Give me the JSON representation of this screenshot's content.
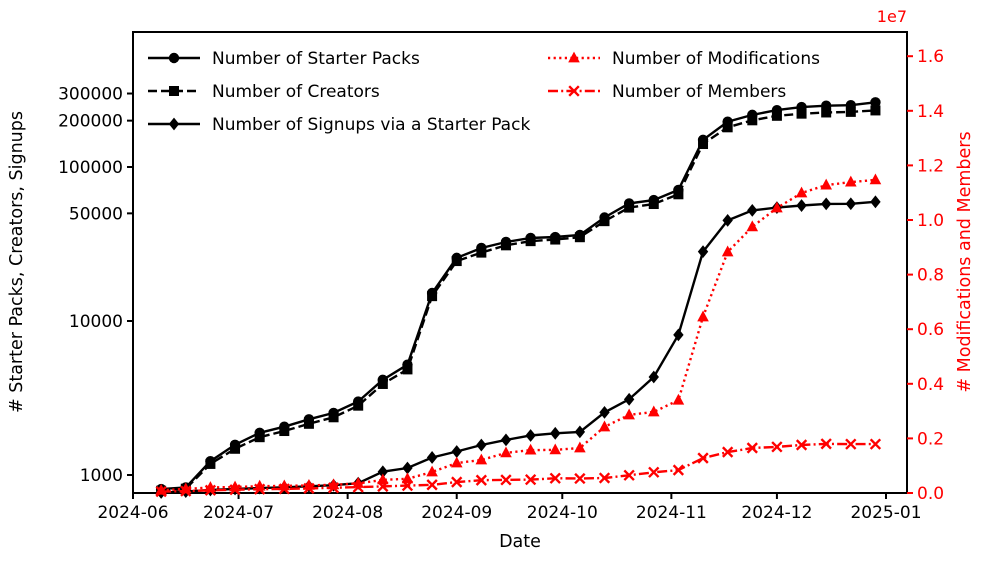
{
  "figure": {
    "background": "#ffffff",
    "xlabel": "Date",
    "ylabel_left": "# Starter Packs, Creators, Signups",
    "ylabel_right": "# Modifications and Members",
    "right_axis_offset_text": "1e7",
    "colors": {
      "black": "#000000",
      "red": "#ff0000"
    }
  },
  "chart_data": {
    "type": "line",
    "x_axis": {
      "label": "Date",
      "ticks": [
        {
          "label": "2024-06",
          "date": "2024-06-01"
        },
        {
          "label": "2024-07",
          "date": "2024-07-01"
        },
        {
          "label": "2024-08",
          "date": "2024-08-01"
        },
        {
          "label": "2024-09",
          "date": "2024-09-01"
        },
        {
          "label": "2024-10",
          "date": "2024-10-01"
        },
        {
          "label": "2024-11",
          "date": "2024-11-01"
        },
        {
          "label": "2024-12",
          "date": "2024-12-01"
        },
        {
          "label": "2025-01",
          "date": "2025-01-01"
        }
      ]
    },
    "left_axis": {
      "label": "# Starter Packs, Creators, Signups",
      "scale": "log",
      "color": "#000000",
      "ticks": [
        {
          "label": "1000",
          "value": 1000
        },
        {
          "label": "10000",
          "value": 10000
        },
        {
          "label": "50000",
          "value": 50000
        },
        {
          "label": "100000",
          "value": 100000
        },
        {
          "label": "200000",
          "value": 200000
        },
        {
          "label": "300000",
          "value": 300000
        }
      ]
    },
    "right_axis": {
      "label": "# Modifications and Members",
      "scale": "linear",
      "color": "#ff0000",
      "offset_text": "1e7",
      "ticks": [
        {
          "label": "0.0",
          "value": 0
        },
        {
          "label": "0.2",
          "value": 2000000
        },
        {
          "label": "0.4",
          "value": 4000000
        },
        {
          "label": "0.6",
          "value": 6000000
        },
        {
          "label": "0.8",
          "value": 8000000
        },
        {
          "label": "1.0",
          "value": 10000000
        },
        {
          "label": "1.2",
          "value": 12000000
        },
        {
          "label": "1.4",
          "value": 14000000
        },
        {
          "label": "1.6",
          "value": 16000000
        }
      ]
    },
    "x_dates": [
      "2024-06-09",
      "2024-06-16",
      "2024-06-23",
      "2024-06-30",
      "2024-07-07",
      "2024-07-14",
      "2024-07-21",
      "2024-07-28",
      "2024-08-04",
      "2024-08-11",
      "2024-08-18",
      "2024-08-25",
      "2024-09-01",
      "2024-09-08",
      "2024-09-15",
      "2024-09-22",
      "2024-09-29",
      "2024-10-06",
      "2024-10-13",
      "2024-10-20",
      "2024-10-27",
      "2024-11-03",
      "2024-11-10",
      "2024-11-17",
      "2024-11-24",
      "2024-12-01",
      "2024-12-08",
      "2024-12-15",
      "2024-12-22",
      "2024-12-29"
    ],
    "series": [
      {
        "name": "Number of Starter Packs",
        "axis": "left",
        "color": "#000000",
        "marker": "circle",
        "linestyle": "solid",
        "values": [
          810,
          830,
          1230,
          1570,
          1880,
          2060,
          2300,
          2530,
          3000,
          4150,
          5200,
          15200,
          25700,
          29800,
          32600,
          34600,
          35100,
          36200,
          47000,
          58000,
          61000,
          71000,
          150000,
          197000,
          218000,
          234000,
          245000,
          250000,
          252000,
          263000
        ]
      },
      {
        "name": "Number of Creators",
        "axis": "left",
        "color": "#000000",
        "marker": "square",
        "linestyle": "dashed",
        "values": [
          790,
          815,
          1180,
          1480,
          1760,
          1930,
          2150,
          2370,
          2820,
          3900,
          4850,
          14500,
          24500,
          27800,
          31000,
          33000,
          33800,
          35000,
          44500,
          54500,
          57500,
          66500,
          141000,
          181000,
          201000,
          215000,
          222000,
          226000,
          228000,
          233000
        ]
      },
      {
        "name": "Number of Signups via a Starter Pack",
        "axis": "left",
        "color": "#000000",
        "marker": "diamond",
        "linestyle": "solid",
        "values": [
          770,
          780,
          800,
          812,
          822,
          832,
          845,
          858,
          885,
          1050,
          1110,
          1300,
          1420,
          1565,
          1690,
          1805,
          1865,
          1905,
          2550,
          3100,
          4330,
          8130,
          28200,
          45000,
          52300,
          54500,
          56200,
          57600,
          57700,
          59400
        ]
      },
      {
        "name": "Number of Modifications",
        "axis": "right",
        "color": "#ff0000",
        "marker": "triangle",
        "linestyle": "dotted",
        "values": [
          100000,
          150000,
          200000,
          220000,
          250000,
          260000,
          280000,
          300000,
          350000,
          480000,
          520000,
          770000,
          1100000,
          1210000,
          1470000,
          1570000,
          1580000,
          1650000,
          2420000,
          2860000,
          2970000,
          3400000,
          6450000,
          8830000,
          9750000,
          10440000,
          10990000,
          11280000,
          11390000,
          11470000
        ]
      },
      {
        "name": "Number of Members",
        "axis": "right",
        "color": "#ff0000",
        "marker": "x",
        "linestyle": "dashdot",
        "values": [
          50000,
          70000,
          100000,
          120000,
          140000,
          150000,
          170000,
          190000,
          215000,
          240000,
          270000,
          300000,
          400000,
          470000,
          480000,
          490000,
          540000,
          530000,
          550000,
          650000,
          760000,
          840000,
          1280000,
          1500000,
          1650000,
          1690000,
          1760000,
          1800000,
          1790000,
          1790000
        ]
      }
    ],
    "legend": {
      "position": "upper left",
      "columns": 2,
      "entries": [
        "Number of Starter Packs",
        "Number of Creators",
        "Number of Signups via a Starter Pack",
        "Number of Modifications",
        "Number of Members"
      ]
    }
  }
}
